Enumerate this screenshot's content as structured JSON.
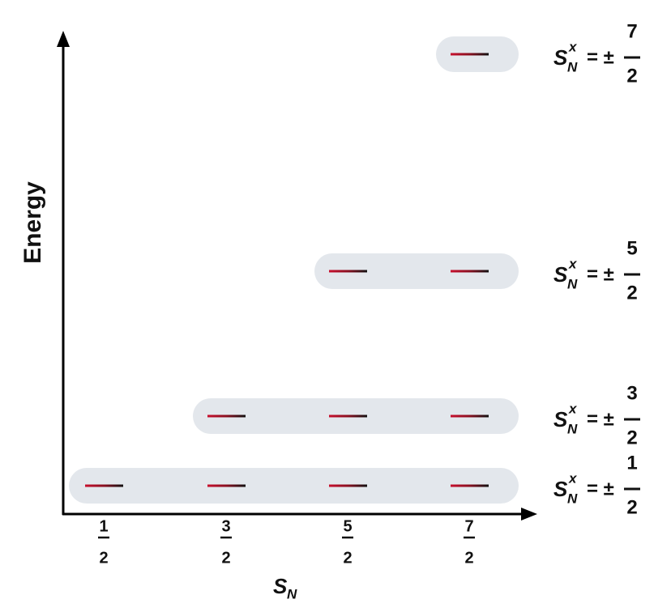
{
  "axes": {
    "y_label": "Energy",
    "x_label": {
      "symbol": "S",
      "subscript": "N"
    }
  },
  "x_ticks": [
    {
      "numerator": "1",
      "denominator": "2"
    },
    {
      "numerator": "3",
      "denominator": "2"
    },
    {
      "numerator": "5",
      "denominator": "2"
    },
    {
      "numerator": "7",
      "denominator": "2"
    }
  ],
  "levels": [
    {
      "symbol": "S",
      "superscript": "x",
      "subscript": "N",
      "relation": "= ±",
      "numerator": "1",
      "denominator": "2"
    },
    {
      "symbol": "S",
      "superscript": "x",
      "subscript": "N",
      "relation": "= ±",
      "numerator": "3",
      "denominator": "2"
    },
    {
      "symbol": "S",
      "superscript": "x",
      "subscript": "N",
      "relation": "= ±",
      "numerator": "5",
      "denominator": "2"
    },
    {
      "symbol": "S",
      "superscript": "x",
      "subscript": "N",
      "relation": "= ±",
      "numerator": "7",
      "denominator": "2"
    }
  ]
}
